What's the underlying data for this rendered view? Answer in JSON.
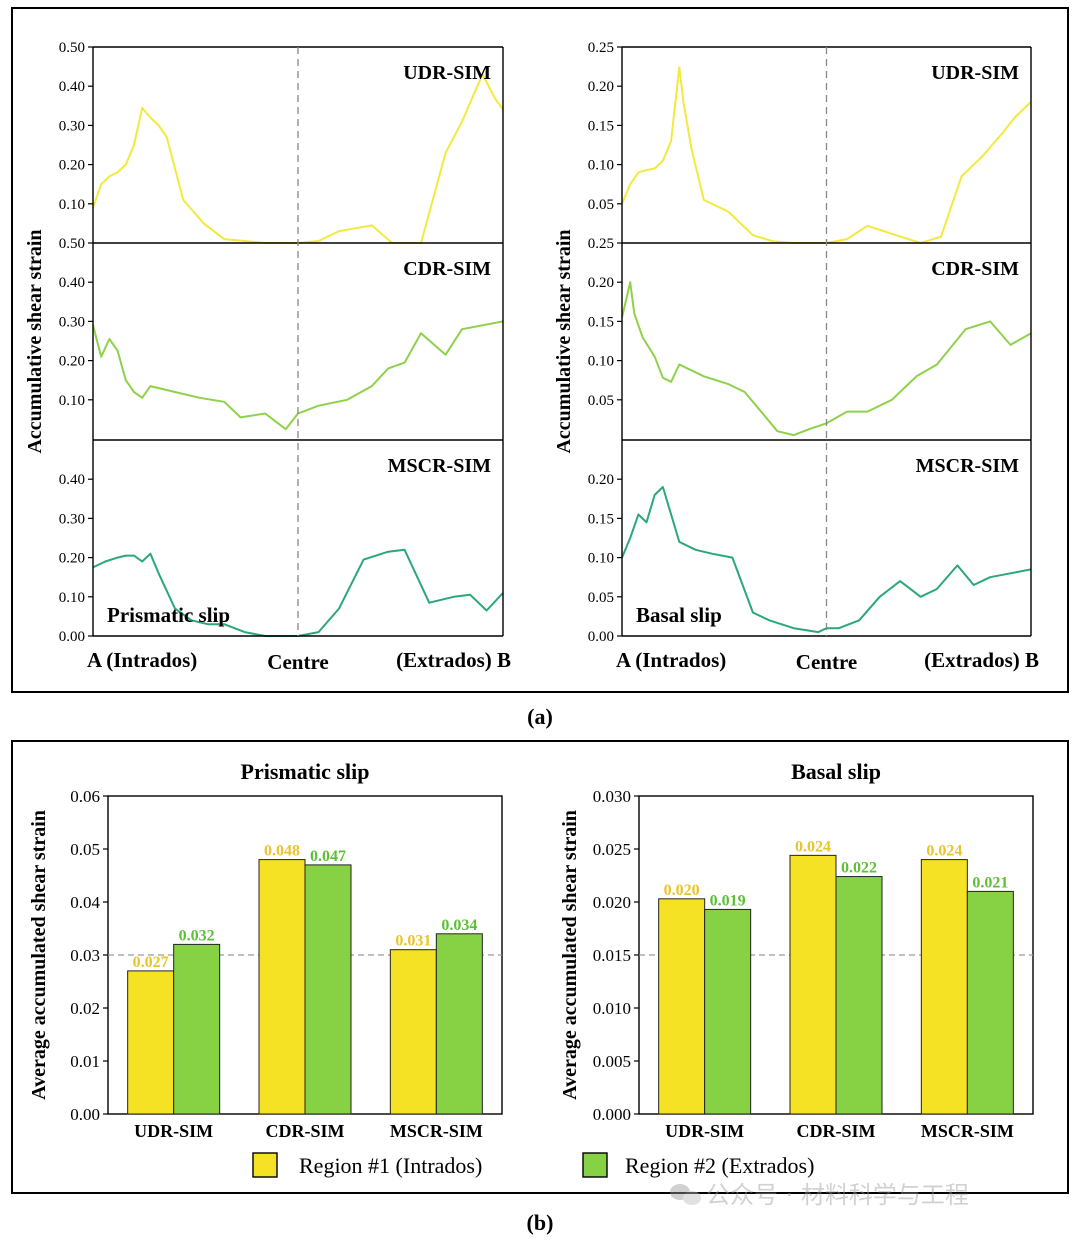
{
  "panel_labels": {
    "a": "(a)",
    "b": "(b)"
  },
  "colors": {
    "udr_line": "#f2ea3c",
    "cdr_line": "#8fd14a",
    "mscr_line": "#2aa878",
    "region1_fill": "#f6e224",
    "region2_fill": "#86d244",
    "region1_label": "#e9c42a",
    "region2_label": "#5cbf35",
    "axis": "#000000",
    "dashed": "#888888"
  },
  "watermark": {
    "text": "公众号 · 材料科学与工程",
    "icon": "wechat-icon"
  },
  "chart_data": [
    {
      "type": "line",
      "panel": "a-left",
      "ylabel": "Accumulative shear strain",
      "x_tick_labels": [
        "A (Intrados)",
        "Centre",
        "(Extrados) B"
      ],
      "annotation": "Prismatic slip",
      "centre_line": true,
      "subplots": [
        {
          "name": "UDR-SIM",
          "ylim": [
            0,
            0.5
          ],
          "yticks": [
            "0.10",
            "0.20",
            "0.30",
            "0.40",
            "0.50"
          ],
          "x": [
            0,
            0.02,
            0.04,
            0.06,
            0.08,
            0.1,
            0.12,
            0.14,
            0.16,
            0.18,
            0.22,
            0.27,
            0.32,
            0.37,
            0.42,
            0.47,
            0.5,
            0.55,
            0.6,
            0.68,
            0.73,
            0.76,
            0.8,
            0.86,
            0.9,
            0.95,
            0.98,
            1.0
          ],
          "y": [
            0.09,
            0.15,
            0.17,
            0.18,
            0.2,
            0.25,
            0.345,
            0.32,
            0.3,
            0.27,
            0.11,
            0.05,
            0.01,
            0.005,
            0.0,
            0.0,
            0.0,
            0.005,
            0.03,
            0.045,
            0.0,
            0.0,
            0.0,
            0.23,
            0.31,
            0.43,
            0.37,
            0.34
          ]
        },
        {
          "name": "CDR-SIM",
          "ylim": [
            0,
            0.5
          ],
          "yticks": [
            "0.10",
            "0.20",
            "0.30",
            "0.40",
            "0.50"
          ],
          "x": [
            0,
            0.02,
            0.04,
            0.06,
            0.08,
            0.1,
            0.12,
            0.14,
            0.2,
            0.26,
            0.32,
            0.36,
            0.42,
            0.47,
            0.5,
            0.55,
            0.62,
            0.68,
            0.72,
            0.76,
            0.8,
            0.86,
            0.9,
            0.95,
            1.0
          ],
          "y": [
            0.29,
            0.21,
            0.255,
            0.225,
            0.15,
            0.12,
            0.105,
            0.135,
            0.12,
            0.105,
            0.095,
            0.055,
            0.065,
            0.025,
            0.065,
            0.085,
            0.1,
            0.135,
            0.18,
            0.195,
            0.27,
            0.215,
            0.28,
            0.29,
            0.3
          ]
        },
        {
          "name": "MSCR-SIM",
          "ylim": [
            0,
            0.5
          ],
          "yticks": [
            "0.00",
            "0.10",
            "0.20",
            "0.30",
            "0.40"
          ],
          "x": [
            0,
            0.03,
            0.06,
            0.08,
            0.1,
            0.12,
            0.14,
            0.16,
            0.2,
            0.24,
            0.28,
            0.32,
            0.37,
            0.42,
            0.47,
            0.5,
            0.55,
            0.6,
            0.66,
            0.72,
            0.76,
            0.82,
            0.88,
            0.92,
            0.96,
            1.0
          ],
          "y": [
            0.175,
            0.19,
            0.2,
            0.205,
            0.205,
            0.19,
            0.21,
            0.16,
            0.07,
            0.04,
            0.03,
            0.03,
            0.01,
            0.0,
            0.0,
            0.0,
            0.01,
            0.07,
            0.195,
            0.215,
            0.22,
            0.085,
            0.1,
            0.105,
            0.065,
            0.11
          ]
        }
      ]
    },
    {
      "type": "line",
      "panel": "a-right",
      "ylabel": "Accumulative shear strain",
      "x_tick_labels": [
        "A (Intrados)",
        "Centre",
        "(Extrados) B"
      ],
      "annotation": "Basal slip",
      "centre_line": true,
      "subplots": [
        {
          "name": "UDR-SIM",
          "ylim": [
            0,
            0.25
          ],
          "yticks": [
            "0.05",
            "0.10",
            "0.15",
            "0.20",
            "0.25"
          ],
          "x": [
            0,
            0.02,
            0.04,
            0.06,
            0.08,
            0.1,
            0.12,
            0.14,
            0.15,
            0.17,
            0.2,
            0.26,
            0.32,
            0.37,
            0.42,
            0.47,
            0.5,
            0.55,
            0.6,
            0.67,
            0.73,
            0.78,
            0.83,
            0.88,
            0.93,
            0.96,
            1.0
          ],
          "y": [
            0.05,
            0.075,
            0.09,
            0.093,
            0.095,
            0.105,
            0.13,
            0.224,
            0.18,
            0.12,
            0.055,
            0.04,
            0.01,
            0.002,
            0.0,
            0.0,
            0.0,
            0.005,
            0.022,
            0.01,
            0.0,
            0.008,
            0.085,
            0.11,
            0.14,
            0.16,
            0.18
          ]
        },
        {
          "name": "CDR-SIM",
          "ylim": [
            0,
            0.25
          ],
          "yticks": [
            "0.05",
            "0.10",
            "0.15",
            "0.20",
            "0.25"
          ],
          "x": [
            0,
            0.02,
            0.03,
            0.05,
            0.08,
            0.1,
            0.12,
            0.14,
            0.2,
            0.26,
            0.3,
            0.34,
            0.38,
            0.42,
            0.46,
            0.5,
            0.55,
            0.6,
            0.66,
            0.72,
            0.77,
            0.84,
            0.9,
            0.95,
            1.0
          ],
          "y": [
            0.155,
            0.2,
            0.16,
            0.13,
            0.105,
            0.078,
            0.073,
            0.095,
            0.08,
            0.07,
            0.06,
            0.035,
            0.01,
            0.005,
            0.013,
            0.02,
            0.035,
            0.035,
            0.05,
            0.08,
            0.095,
            0.14,
            0.15,
            0.12,
            0.135
          ]
        },
        {
          "name": "MSCR-SIM",
          "ylim": [
            0,
            0.25
          ],
          "yticks": [
            "0.00",
            "0.05",
            "0.10",
            "0.15",
            "0.20"
          ],
          "x": [
            0,
            0.02,
            0.04,
            0.06,
            0.08,
            0.1,
            0.14,
            0.18,
            0.22,
            0.27,
            0.32,
            0.36,
            0.42,
            0.48,
            0.5,
            0.53,
            0.58,
            0.63,
            0.68,
            0.73,
            0.77,
            0.82,
            0.86,
            0.9,
            0.95,
            1.0
          ],
          "y": [
            0.1,
            0.125,
            0.155,
            0.145,
            0.18,
            0.19,
            0.12,
            0.11,
            0.105,
            0.1,
            0.03,
            0.02,
            0.01,
            0.005,
            0.01,
            0.01,
            0.02,
            0.05,
            0.07,
            0.05,
            0.06,
            0.09,
            0.065,
            0.075,
            0.08,
            0.085
          ]
        }
      ]
    },
    {
      "type": "bar",
      "panel": "b-left",
      "title": "Prismatic slip",
      "ylabel": "Average accumulated shear strain",
      "ylim": [
        0,
        0.06
      ],
      "yticks": [
        "0.00",
        "0.01",
        "0.02",
        "0.03",
        "0.04",
        "0.05",
        "0.06"
      ],
      "reference_line": 0.03,
      "categories": [
        "UDR-SIM",
        "CDR-SIM",
        "MSCR-SIM"
      ],
      "series": [
        {
          "name": "Region #1 (Intrados)",
          "values": [
            0.027,
            0.048,
            0.031
          ],
          "labels": [
            "0.027",
            "0.048",
            "0.031"
          ]
        },
        {
          "name": "Region #2 (Extrados)",
          "values": [
            0.032,
            0.047,
            0.034
          ],
          "labels": [
            "0.032",
            "0.047",
            "0.034"
          ]
        }
      ]
    },
    {
      "type": "bar",
      "panel": "b-right",
      "title": "Basal slip",
      "ylabel": "Average accumulated shear strain",
      "ylim": [
        0,
        0.03
      ],
      "yticks": [
        "0.000",
        "0.005",
        "0.010",
        "0.015",
        "0.020",
        "0.025",
        "0.030"
      ],
      "reference_line": 0.015,
      "categories": [
        "UDR-SIM",
        "CDR-SIM",
        "MSCR-SIM"
      ],
      "series": [
        {
          "name": "Region #1 (Intrados)",
          "values": [
            0.0203,
            0.0244,
            0.024
          ],
          "labels": [
            "0.020",
            "0.024",
            "0.024"
          ]
        },
        {
          "name": "Region #2 (Extrados)",
          "values": [
            0.0193,
            0.0224,
            0.021
          ],
          "labels": [
            "0.019",
            "0.022",
            "0.021"
          ]
        }
      ]
    }
  ],
  "legend": [
    {
      "label": "Region #1 (Intrados)",
      "swatch": "region1_fill"
    },
    {
      "label": "Region #2 (Extrados)",
      "swatch": "region2_fill"
    }
  ]
}
